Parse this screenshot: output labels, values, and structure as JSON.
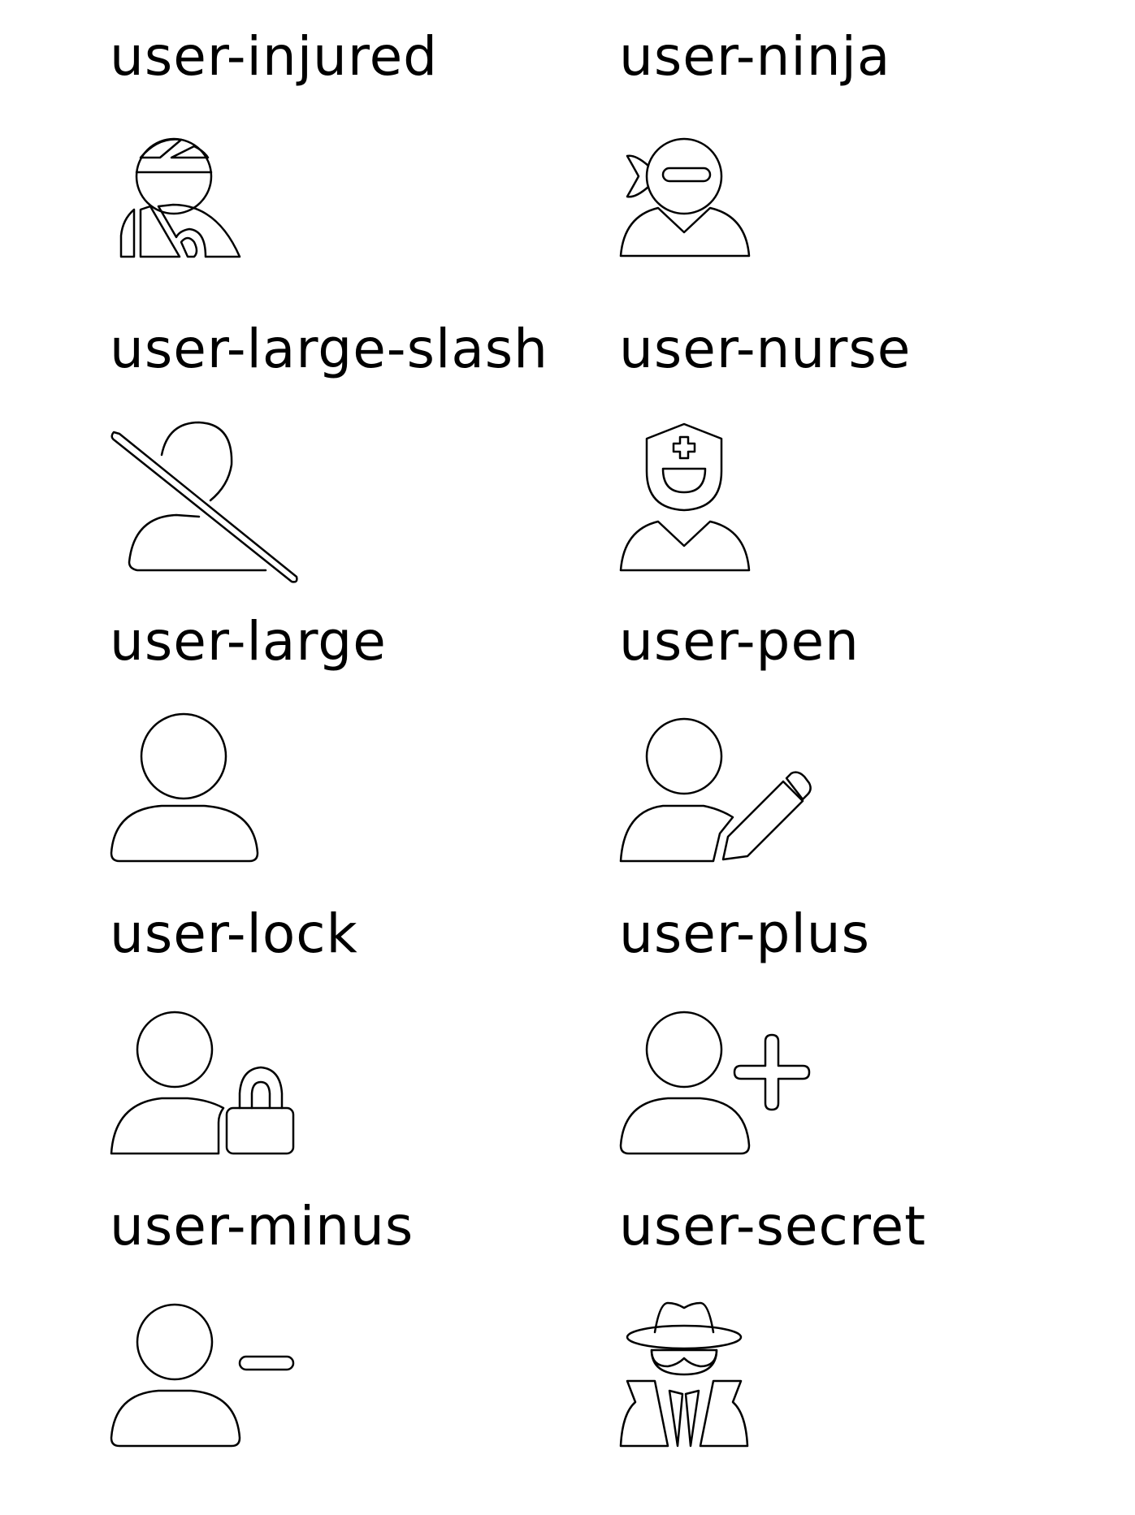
{
  "icons": [
    {
      "label": "user-injured",
      "icon": "user-injured-icon"
    },
    {
      "label": "user-ninja",
      "icon": "user-ninja-icon"
    },
    {
      "label": "user-large-slash",
      "icon": "user-large-slash-icon"
    },
    {
      "label": "user-nurse",
      "icon": "user-nurse-icon"
    },
    {
      "label": "user-large",
      "icon": "user-large-icon"
    },
    {
      "label": "user-pen",
      "icon": "user-pen-icon"
    },
    {
      "label": "user-lock",
      "icon": "user-lock-icon"
    },
    {
      "label": "user-plus",
      "icon": "user-plus-icon"
    },
    {
      "label": "user-minus",
      "icon": "user-minus-icon"
    },
    {
      "label": "user-secret",
      "icon": "user-secret-icon"
    }
  ]
}
